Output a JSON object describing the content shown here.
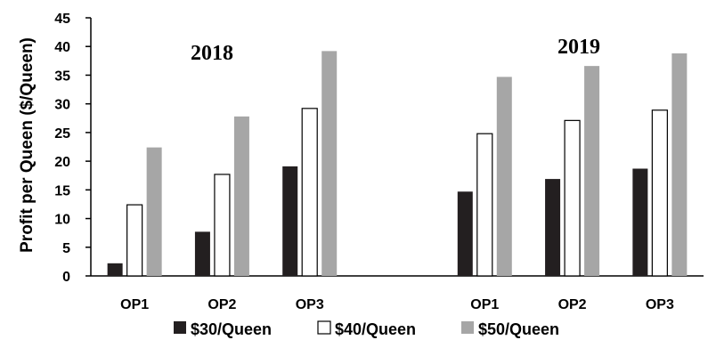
{
  "chart_data": {
    "type": "bar",
    "title": "",
    "xlabel": "",
    "ylabel": "Profit per Queen ($/Queen)",
    "ylim": [
      0,
      45
    ],
    "yticks": [
      0,
      5,
      10,
      15,
      20,
      25,
      30,
      35,
      40,
      45
    ],
    "grid": false,
    "legend_position": "bottom",
    "groups": [
      {
        "label": "2018",
        "categories": [
          "OP1",
          "OP2",
          "OP3"
        ]
      },
      {
        "label": "2019",
        "categories": [
          "OP1",
          "OP2",
          "OP3"
        ]
      }
    ],
    "series": [
      {
        "name": "$30/Queen",
        "color": "#231f20",
        "values": [
          2.2,
          7.7,
          19.1,
          14.7,
          16.9,
          18.7
        ]
      },
      {
        "name": "$40/Queen",
        "color": "#ffffff",
        "values": [
          12.4,
          17.7,
          29.2,
          24.8,
          27.1,
          28.9
        ]
      },
      {
        "name": "$50/Queen",
        "color": "#a6a6a6",
        "values": [
          22.4,
          27.8,
          39.2,
          34.7,
          36.6,
          38.8
        ]
      }
    ]
  }
}
